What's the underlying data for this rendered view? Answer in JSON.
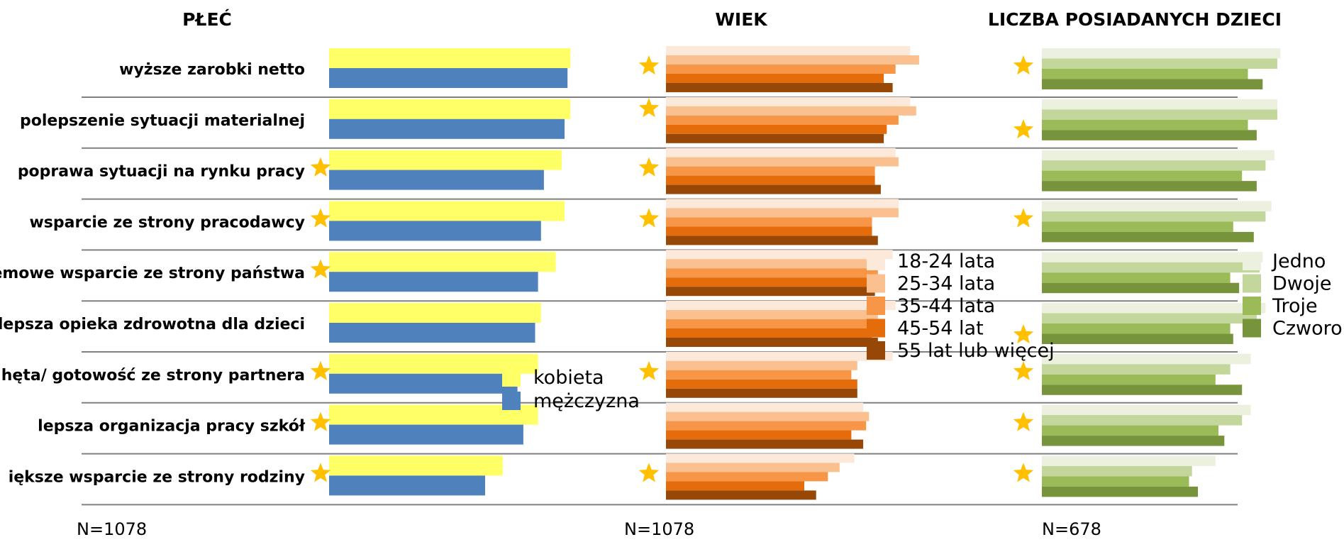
{
  "chart_data": [
    {
      "type": "bar",
      "orientation": "horizontal",
      "title": "PŁEĆ",
      "categories": [
        "wyższe zarobki netto",
        "polepszenie sytuacji materialnej",
        "poprawa sytuacji na rynku pracy",
        "wsparcie ze strony pracodawcy",
        "systemowe wsparcie ze strony państwa",
        "lepsza opieka zdrowotna dla dzieci",
        "chęta/ gotowość ze strony partnera",
        "lepsza organizacja pracy szkół",
        "większe wsparcie ze strony rodziny"
      ],
      "categories_visible": [
        "wyższe zarobki netto",
        "polepszenie sytuacji materialnej",
        "poprawa sytuacji na rynku pracy",
        "wsparcie ze strony pracodawcy",
        "emowe wsparcie ze strony państwa",
        "lepsza opieka zdrowotna dla dzieci",
        "hęta/ gotowość ze strony partnera",
        "lepsza organizacja pracy szkół",
        "iększe wsparcie ze strony rodziny"
      ],
      "series": [
        {
          "name": "kobieta",
          "color": "#FFFF66",
          "values": [
            82,
            82,
            79,
            80,
            77,
            72,
            71,
            71,
            59
          ]
        },
        {
          "name": "mężczyzna",
          "color": "#4F81BD",
          "values": [
            81,
            80,
            73,
            72,
            71,
            70,
            64,
            66,
            53
          ]
        }
      ],
      "significance_stars": [
        false,
        false,
        true,
        true,
        true,
        false,
        true,
        true,
        true
      ],
      "xlim": [
        0,
        100
      ],
      "legend": "inside-bottom",
      "n_label": "N=1078"
    },
    {
      "type": "bar",
      "orientation": "horizontal",
      "title": "WIEK",
      "categories": [
        "wyższe zarobki netto",
        "polepszenie sytuacji materialnej",
        "poprawa sytuacji na rynku pracy",
        "wsparcie ze strony pracodawcy",
        "systemowe wsparcie ze strony państwa",
        "lepsza opieka zdrowotna dla dzieci",
        "chęta/ gotowość ze strony partnera",
        "lepsza organizacja pracy szkół",
        "większe wsparcie ze strony rodziny"
      ],
      "series": [
        {
          "name": "18-24 lata",
          "color": "#FDE9D9",
          "values": [
            83,
            83,
            78,
            79,
            77,
            78,
            77,
            67,
            64
          ]
        },
        {
          "name": "25-34 lata",
          "color": "#FAC090",
          "values": [
            86,
            85,
            79,
            79,
            72,
            72,
            65,
            69,
            59
          ]
        },
        {
          "name": "35-44 lata",
          "color": "#F79646",
          "values": [
            78,
            79,
            71,
            70,
            72,
            71,
            63,
            68,
            55
          ]
        },
        {
          "name": "45-54 lat",
          "color": "#E46C0A",
          "values": [
            74,
            75,
            71,
            70,
            71,
            70,
            65,
            63,
            47
          ]
        },
        {
          "name": "55 lat lub więcej",
          "color": "#974806",
          "values": [
            77,
            74,
            73,
            72,
            71,
            72,
            65,
            67,
            51
          ]
        }
      ],
      "significance_stars": [
        true,
        true,
        true,
        true,
        false,
        false,
        true,
        false,
        true
      ],
      "xlim": [
        0,
        100
      ],
      "legend": "right",
      "n_label": "N=1078"
    },
    {
      "type": "bar",
      "orientation": "horizontal",
      "title": "LICZBA POSIADANYCH DZIECI",
      "categories": [
        "wyższe zarobki netto",
        "polepszenie sytuacji materialnej",
        "poprawa sytuacji na rynku pracy",
        "wsparcie ze strony pracodawcy",
        "systemowe wsparcie ze strony państwa",
        "lepsza opieka zdrowotna dla dzieci",
        "chęta/ gotowość ze strony partnera",
        "lepsza organizacja pracy szkół",
        "większe wsparcie ze strony rodziny"
      ],
      "series": [
        {
          "name": "Jedno",
          "color": "#EBF1DE",
          "values": [
            81,
            80,
            79,
            78,
            75,
            76,
            71,
            71,
            59
          ]
        },
        {
          "name": "Dwoje",
          "color": "#C3D69B",
          "values": [
            80,
            80,
            76,
            76,
            74,
            73,
            64,
            68,
            51
          ]
        },
        {
          "name": "Troje",
          "color": "#9BBB59",
          "values": [
            70,
            70,
            68,
            65,
            64,
            64,
            59,
            60,
            50
          ]
        },
        {
          "name": "Czworo",
          "color": "#77933C",
          "values": [
            75,
            73,
            73,
            72,
            67,
            65,
            68,
            62,
            53
          ]
        }
      ],
      "significance_stars": [
        true,
        true,
        false,
        true,
        false,
        true,
        true,
        true,
        true
      ],
      "xlim": [
        0,
        100
      ],
      "legend": "right",
      "n_label": "N=678"
    }
  ]
}
